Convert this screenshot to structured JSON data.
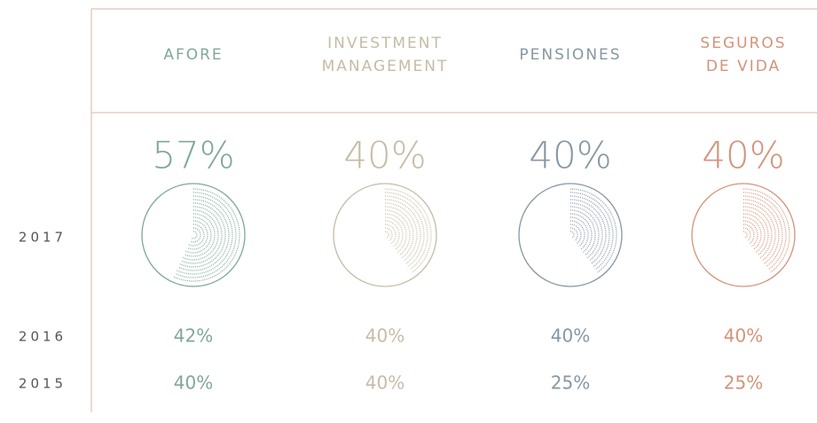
{
  "years": [
    "2017",
    "2016",
    "2015"
  ],
  "columns": [
    {
      "name": [
        "AFORE"
      ],
      "color": "#7fa898",
      "values": [
        57,
        42,
        40
      ],
      "value_labels": [
        "57%",
        "42%",
        "40%"
      ]
    },
    {
      "name": [
        "INVESTMENT",
        "MANAGEMENT"
      ],
      "color": "#c6bca6",
      "values": [
        40,
        40,
        40
      ],
      "value_labels": [
        "40%",
        "40%",
        "40%"
      ]
    },
    {
      "name": [
        "PENSIONES"
      ],
      "color": "#8797a3",
      "values": [
        40,
        40,
        25
      ],
      "value_labels": [
        "40%",
        "40%",
        "25%"
      ]
    },
    {
      "name": [
        "SEGUROS",
        "DE VIDA"
      ],
      "color": "#d3937a",
      "values": [
        40,
        40,
        25
      ],
      "value_labels": [
        "40%",
        "40%",
        "25%"
      ]
    }
  ]
}
